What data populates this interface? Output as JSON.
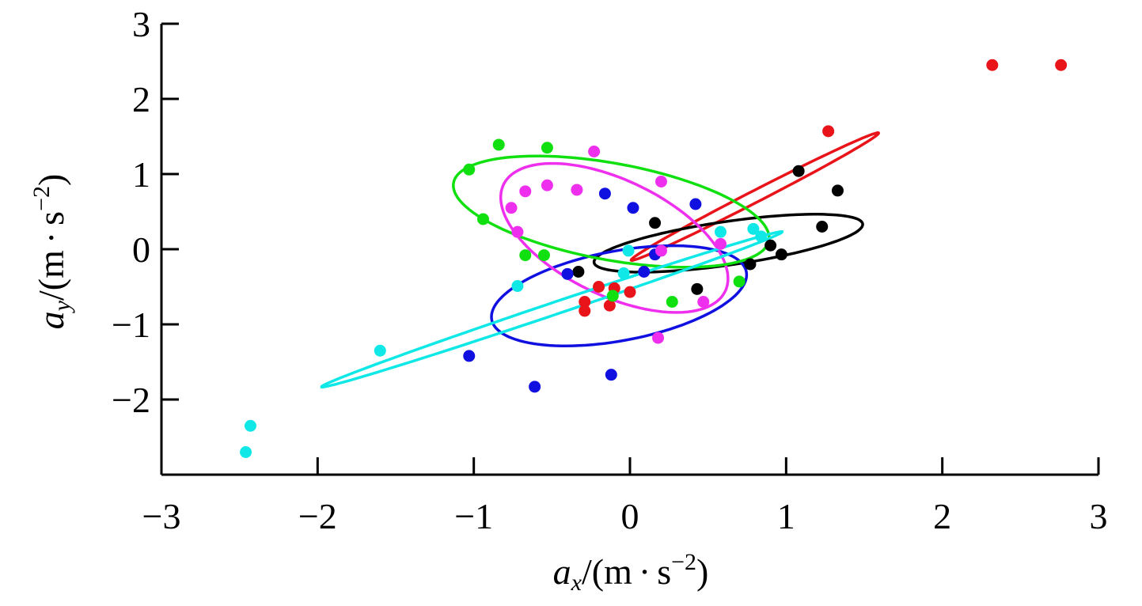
{
  "chart_data": {
    "type": "scatter",
    "xlabel": {
      "var": "a",
      "sub": "x",
      "unit_pre": "/(m",
      "dot": "·",
      "unit_s": "s",
      "exp": "−2",
      "close": ")"
    },
    "ylabel": {
      "var": "a",
      "sub": "y",
      "unit_pre": "/(m",
      "dot": "·",
      "unit_s": "s",
      "exp": "−2",
      "close": ")"
    },
    "xlim": [
      -3,
      3
    ],
    "ylim": [
      -3,
      3
    ],
    "xticks": [
      -3,
      -2,
      -1,
      0,
      1,
      2,
      3
    ],
    "yticks": [
      -2,
      -1,
      0,
      1,
      2,
      3
    ],
    "xtick_labels": [
      "−3",
      "−2",
      "−1",
      "0",
      "1",
      "2",
      "3"
    ],
    "ytick_labels": [
      "−2",
      "−1",
      "0",
      "1",
      "2",
      "3"
    ],
    "grid": false,
    "series": [
      {
        "color": "#e8141a",
        "points": [
          [
            2.32,
            2.45
          ],
          [
            2.76,
            2.45
          ],
          [
            1.27,
            1.57
          ],
          [
            -0.29,
            -0.7
          ],
          [
            -0.29,
            -0.82
          ],
          [
            -0.13,
            -0.75
          ],
          [
            -0.2,
            -0.5
          ],
          [
            -0.1,
            -0.52
          ],
          [
            0.0,
            -0.57
          ]
        ],
        "ellipse": {
          "cx": 0.8,
          "cy": 0.7,
          "a": 1.16,
          "b": 0.06,
          "angle_deg": 47
        }
      },
      {
        "color": "#000000",
        "points": [
          [
            1.08,
            1.04
          ],
          [
            1.33,
            0.78
          ],
          [
            1.23,
            0.3
          ],
          [
            0.9,
            0.05
          ],
          [
            0.97,
            -0.07
          ],
          [
            0.77,
            -0.2
          ],
          [
            0.43,
            -0.53
          ],
          [
            0.16,
            0.35
          ],
          [
            -0.33,
            -0.3
          ]
        ],
        "ellipse": {
          "cx": 0.63,
          "cy": 0.08,
          "a": 0.9,
          "b": 0.28,
          "angle_deg": 18
        }
      },
      {
        "color": "#1010e0",
        "points": [
          [
            0.42,
            0.6
          ],
          [
            0.02,
            0.55
          ],
          [
            -0.16,
            0.74
          ],
          [
            0.16,
            -0.07
          ],
          [
            0.09,
            -0.3
          ],
          [
            -0.4,
            -0.33
          ],
          [
            -1.03,
            -1.42
          ],
          [
            -0.61,
            -1.83
          ],
          [
            -0.12,
            -1.67
          ]
        ],
        "ellipse": {
          "cx": -0.07,
          "cy": -0.62,
          "a": 0.9,
          "b": 0.55,
          "angle_deg": 32
        }
      },
      {
        "color": "#ee30ee",
        "points": [
          [
            -0.23,
            1.3
          ],
          [
            0.2,
            0.9
          ],
          [
            -0.53,
            0.85
          ],
          [
            -0.34,
            0.79
          ],
          [
            -0.67,
            0.77
          ],
          [
            -0.76,
            0.55
          ],
          [
            -0.72,
            0.23
          ],
          [
            0.58,
            0.07
          ],
          [
            0.2,
            -0.02
          ],
          [
            0.47,
            -0.7
          ],
          [
            0.18,
            -1.18
          ]
        ],
        "ellipse": {
          "cx": -0.1,
          "cy": 0.15,
          "a": 1.1,
          "b": 0.55,
          "angle_deg": -60
        }
      },
      {
        "color": "#10e010",
        "points": [
          [
            -0.84,
            1.39
          ],
          [
            -0.53,
            1.35
          ],
          [
            -1.03,
            1.06
          ],
          [
            -0.94,
            0.4
          ],
          [
            -0.67,
            -0.08
          ],
          [
            -0.55,
            -0.08
          ],
          [
            -0.11,
            -0.62
          ],
          [
            0.27,
            -0.7
          ],
          [
            0.7,
            -0.43
          ]
        ],
        "ellipse": {
          "cx": -0.12,
          "cy": 0.5,
          "a": 1.1,
          "b": 0.6,
          "angle_deg": -28
        }
      },
      {
        "color": "#10e8e8",
        "points": [
          [
            -2.46,
            -2.7
          ],
          [
            -2.43,
            -2.35
          ],
          [
            -1.6,
            -1.35
          ],
          [
            -0.72,
            -0.49
          ],
          [
            -0.04,
            -0.32
          ],
          [
            -0.01,
            -0.02
          ],
          [
            0.79,
            0.27
          ],
          [
            0.84,
            0.17
          ],
          [
            0.58,
            0.23
          ]
        ],
        "ellipse": {
          "cx": -0.5,
          "cy": -0.8,
          "a": 1.8,
          "b": 0.07,
          "angle_deg": 35
        }
      }
    ]
  }
}
